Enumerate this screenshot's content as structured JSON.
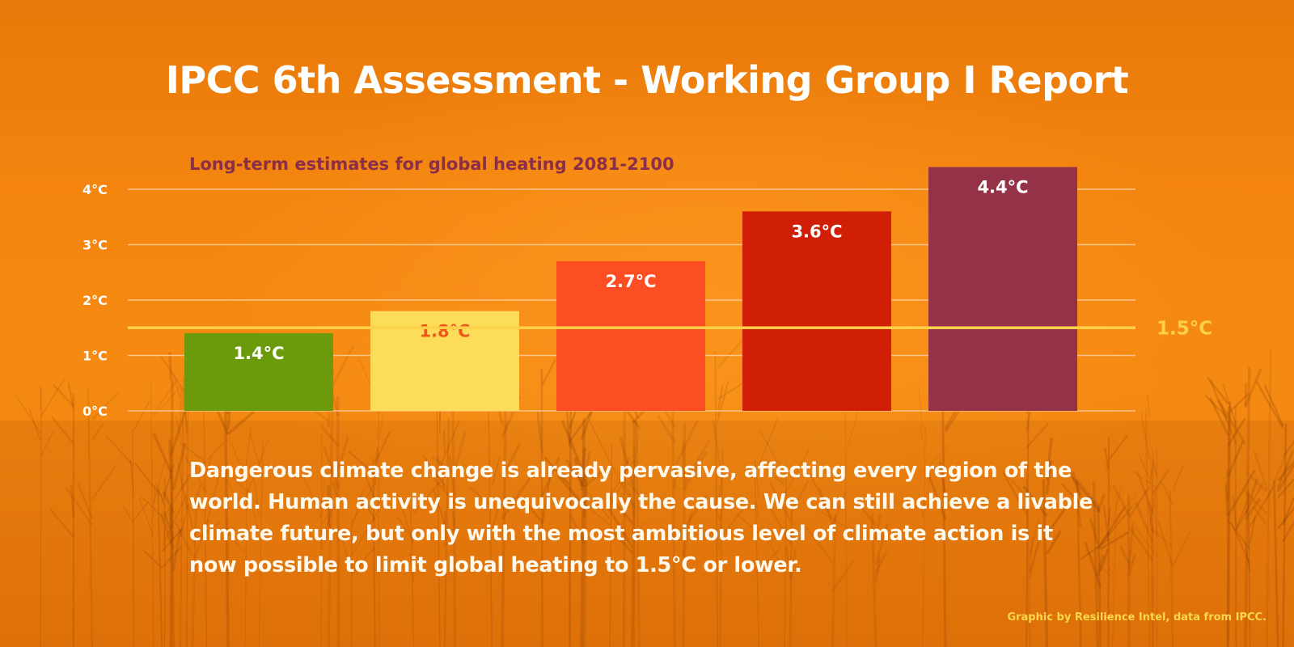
{
  "title": "IPCC 6th Assessment - Working Group I Report",
  "chart_data": {
    "type": "bar",
    "title": "Long-term estimates for global heating 2081-2100",
    "categories": [
      "",
      "",
      "",
      "",
      ""
    ],
    "values": [
      1.4,
      1.8,
      2.7,
      3.6,
      4.4
    ],
    "data_labels": [
      "1.4°C",
      "1.8°C",
      "2.7°C",
      "3.6°C",
      "4.4°C"
    ],
    "bar_colors": [
      "#6b9a0a",
      "#fddc5a",
      "#fc4e22",
      "#d11e06",
      "#943348"
    ],
    "label_colors": [
      "#ffffff",
      "#f0551a",
      "#ffffff",
      "#ffffff",
      "#ffffff"
    ],
    "yticks": [
      0,
      1,
      2,
      3,
      4
    ],
    "ytick_labels": [
      "0°C",
      "1°C",
      "2°C",
      "3°C",
      "4°C"
    ],
    "ylim": [
      0,
      4.4
    ],
    "grid": true,
    "reference_line": {
      "value": 1.5,
      "label": "1.5°C",
      "color": "#fcd14a"
    },
    "colors": {
      "title": "#8b2f48",
      "axis_text": "#ffffff",
      "gridline": "#fbc58c"
    }
  },
  "paragraph": "Dangerous climate change is already pervasive, affecting every region of the world. Human activity is unequivocally the cause. We can still achieve a livable climate future, but only with the most ambitious level of climate action is it now possible to limit global heating to 1.5°C or lower.",
  "credit": "Graphic by Resilience Intel, data from IPCC."
}
